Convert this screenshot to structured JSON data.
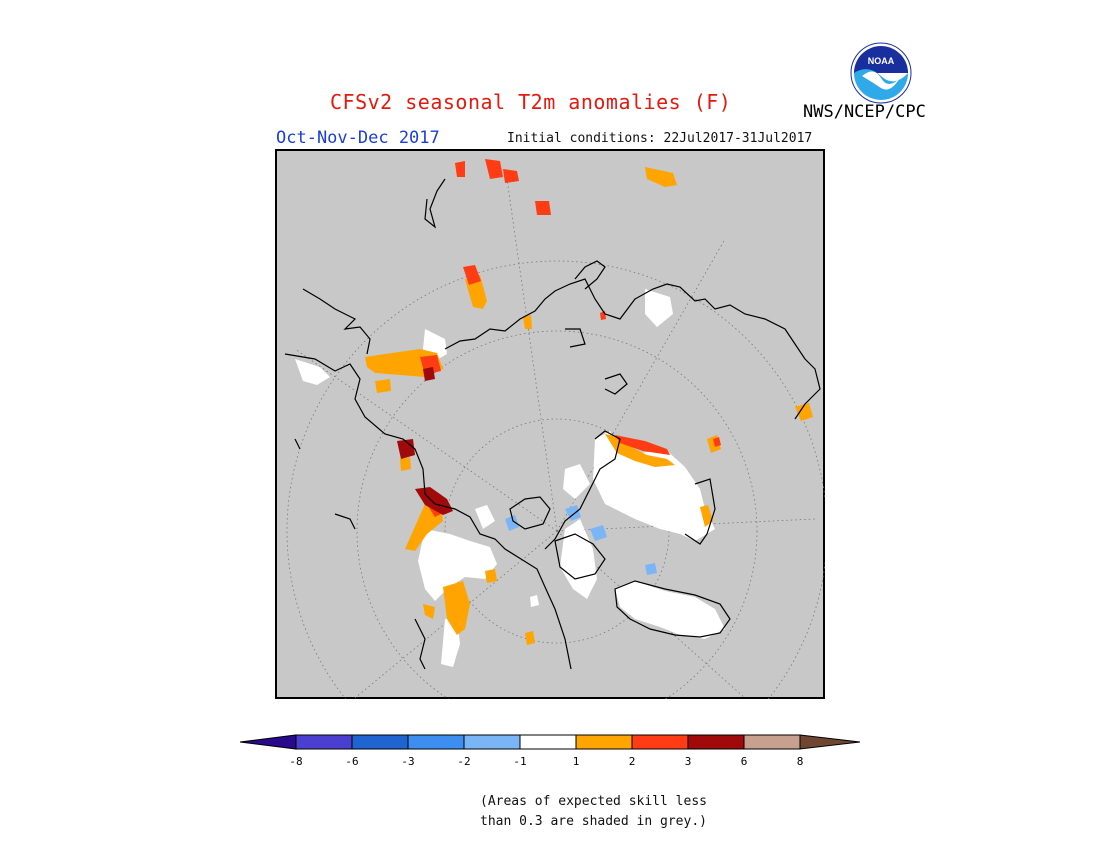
{
  "title": "CFSv2 seasonal T2m anomalies (F)",
  "season": "Oct-Nov-Dec 2017",
  "initial_conditions": "Initial conditions: 22Jul2017-31Jul2017",
  "agency": "NWS/NCEP/CPC",
  "logo_text": "NOAA",
  "skill_note_line1": "(Areas of expected skill less",
  "skill_note_line2": "than 0.3 are shaded in grey.)",
  "colors": {
    "grey": "#c8c8c8",
    "lt_minus_8": "#2a0a8c",
    "m8_m6": "#4b3fd0",
    "m6_m3": "#1f64d1",
    "m3_m2": "#3c8ff0",
    "m2_m1": "#7ab6f5",
    "m1_1": "#ffffff",
    "p1_2": "#ffa400",
    "p2_3": "#ff3c14",
    "p3_6": "#a00a0a",
    "p6_8": "#c8a090",
    "gt_8": "#6e4632"
  },
  "colorbar": {
    "ticks": [
      "-8",
      "-6",
      "-3",
      "-2",
      "-1",
      "1",
      "2",
      "3",
      "6",
      "8"
    ]
  }
}
